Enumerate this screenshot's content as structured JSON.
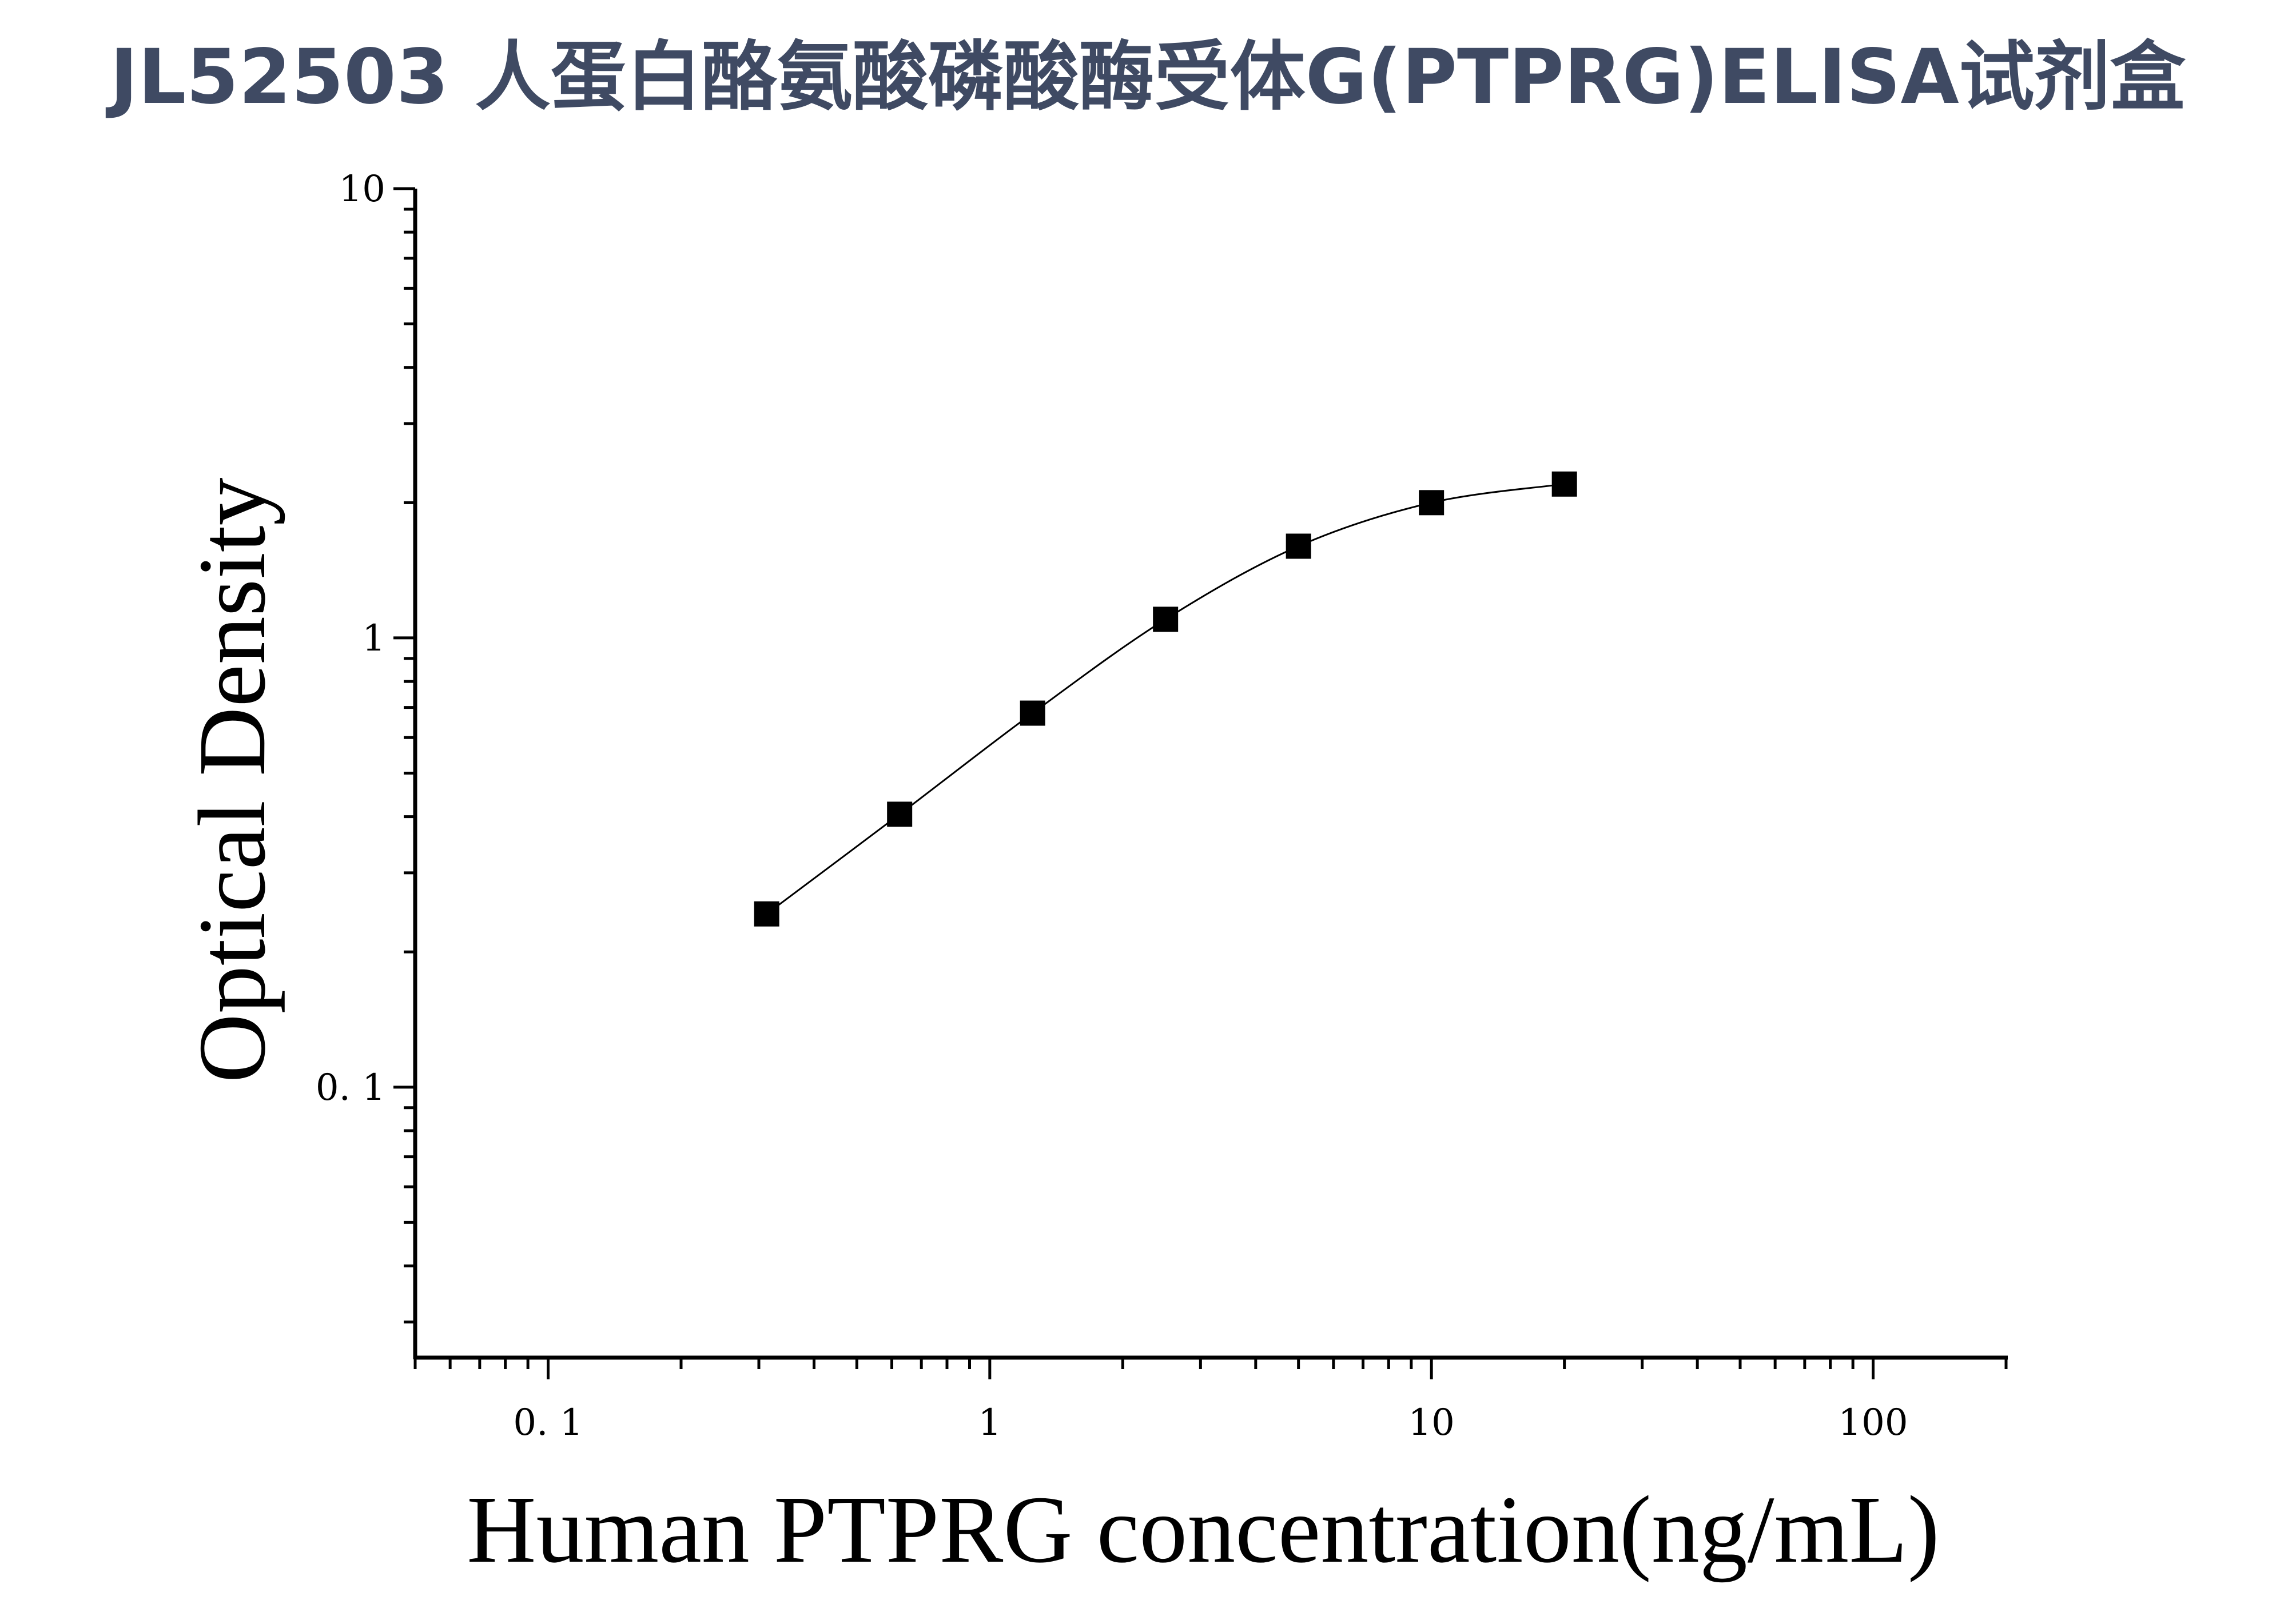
{
  "chart_data": {
    "type": "scatter",
    "title": "JL52503 人蛋白酪氨酸磷酸酶受体G(PTPRG)ELISA试剂盒",
    "xlabel": "Human PTPRG concentration(ng/mL)",
    "ylabel": "Optical Density",
    "x_scale": "log",
    "y_scale": "log",
    "xlim": [
      0.05,
      200
    ],
    "ylim": [
      0.025,
      10
    ],
    "x_ticks": [
      {
        "value": 0.1,
        "label": "0. 1"
      },
      {
        "value": 1,
        "label": "1"
      },
      {
        "value": 10,
        "label": "10"
      },
      {
        "value": 100,
        "label": "100"
      }
    ],
    "y_ticks": [
      {
        "value": 0.1,
        "label": "0. 1"
      },
      {
        "value": 1,
        "label": "1"
      },
      {
        "value": 10,
        "label": "10"
      }
    ],
    "grid": false,
    "legend": "none",
    "series": [
      {
        "marker": "square",
        "color": "#000000",
        "fit_curve": true,
        "x": [
          0.3125,
          0.625,
          1.25,
          2.5,
          5,
          10,
          20
        ],
        "y": [
          0.243,
          0.405,
          0.68,
          1.1,
          1.6,
          2.0,
          2.2
        ]
      }
    ]
  }
}
